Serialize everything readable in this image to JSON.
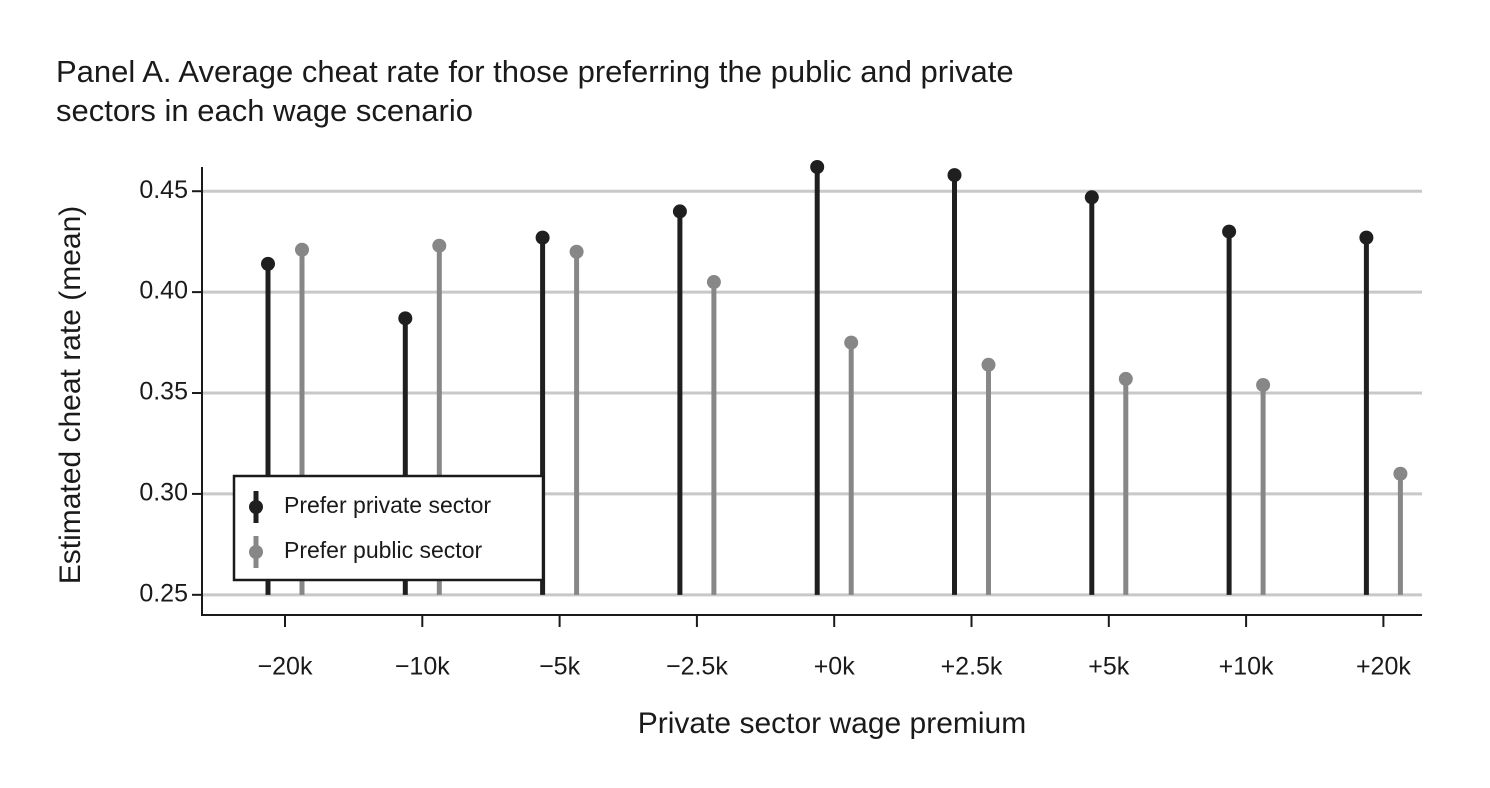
{
  "chart_data": {
    "type": "lollipop",
    "title": [
      "Panel A. Average cheat rate for those preferring the public and private",
      "sectors in each wage scenario"
    ],
    "x_label": "Private sector wage premium",
    "y_label": "Estimated cheat rate (mean)",
    "categories": [
      "−20k",
      "−10k",
      "−5k",
      "−2.5k",
      "+0k",
      "+2.5k",
      "+5k",
      "+10k",
      "+20k"
    ],
    "series": [
      {
        "name": "Prefer private sector",
        "color": "#1f1f1f",
        "values": [
          0.414,
          0.387,
          0.427,
          0.44,
          0.462,
          0.458,
          0.447,
          0.43,
          0.427
        ]
      },
      {
        "name": "Prefer public sector",
        "color": "#878787",
        "values": [
          0.421,
          0.423,
          0.42,
          0.405,
          0.375,
          0.364,
          0.357,
          0.354,
          0.31
        ]
      }
    ],
    "ylim": [
      0.24,
      0.462
    ],
    "yticks": [
      0.25,
      {
        "value": 0.3,
        "label": "0.30"
      },
      0.35,
      {
        "value": 0.4,
        "label": "0.40"
      },
      0.45
    ],
    "grid": true,
    "legend": "lower left"
  }
}
